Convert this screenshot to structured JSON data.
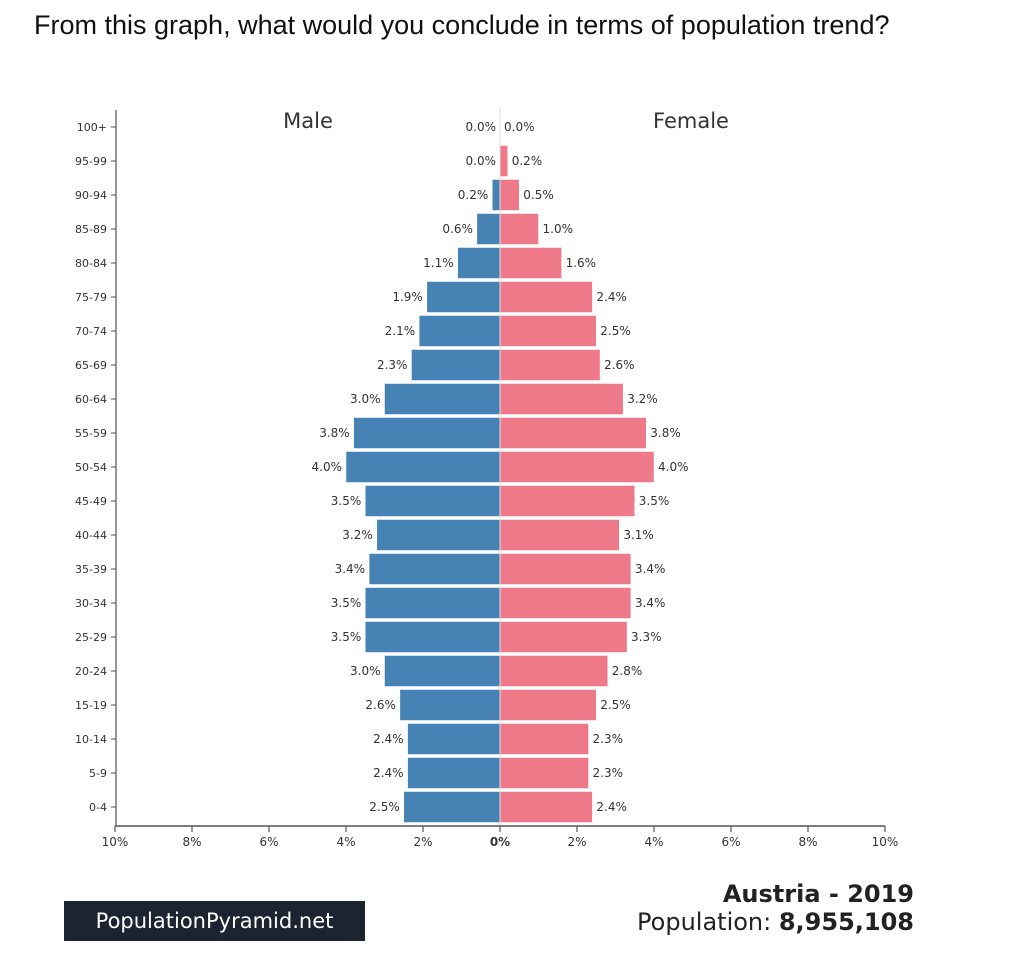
{
  "question": "From this graph, what would you conclude in terms of population trend?",
  "colors": {
    "male": "#4682b4",
    "female": "#ee7989",
    "axis": "#555555",
    "brand_bg": "#1c2331"
  },
  "chart_data": {
    "type": "bar",
    "orientation": "horizontal-diverging",
    "left_label": "Male",
    "right_label": "Female",
    "categories": [
      "100+",
      "95-99",
      "90-94",
      "85-89",
      "80-84",
      "75-79",
      "70-74",
      "65-69",
      "60-64",
      "55-59",
      "50-54",
      "45-49",
      "40-44",
      "35-39",
      "30-34",
      "25-29",
      "20-24",
      "15-19",
      "10-14",
      "5-9",
      "0-4"
    ],
    "series": [
      {
        "name": "Male",
        "values": [
          0.0,
          0.0,
          0.2,
          0.6,
          1.1,
          1.9,
          2.1,
          2.3,
          3.0,
          3.8,
          4.0,
          3.5,
          3.2,
          3.4,
          3.5,
          3.5,
          3.0,
          2.6,
          2.4,
          2.4,
          2.5
        ]
      },
      {
        "name": "Female",
        "values": [
          0.0,
          0.2,
          0.5,
          1.0,
          1.6,
          2.4,
          2.5,
          2.6,
          3.2,
          3.8,
          4.0,
          3.5,
          3.1,
          3.4,
          3.4,
          3.3,
          2.8,
          2.5,
          2.3,
          2.3,
          2.4
        ]
      }
    ],
    "male_labels": [
      "0.0%",
      "0.0%",
      "0.2%",
      "0.6%",
      "1.1%",
      "1.9%",
      "2.1%",
      "2.3%",
      "3.0%",
      "3.8%",
      "4.0%",
      "3.5%",
      "3.2%",
      "3.4%",
      "3.5%",
      "3.5%",
      "3.0%",
      "2.6%",
      "2.4%",
      "2.4%",
      "2.5%"
    ],
    "female_labels": [
      "0.0%",
      "0.2%",
      "0.5%",
      "1.0%",
      "1.6%",
      "2.4%",
      "2.5%",
      "2.6%",
      "3.2%",
      "3.8%",
      "4.0%",
      "3.5%",
      "3.1%",
      "3.4%",
      "3.4%",
      "3.3%",
      "2.8%",
      "2.5%",
      "2.3%",
      "2.3%",
      "2.4%"
    ],
    "x_ticks": [
      -10,
      -8,
      -6,
      -4,
      -2,
      0,
      2,
      4,
      6,
      8,
      10
    ],
    "x_tick_labels": [
      "10%",
      "8%",
      "6%",
      "4%",
      "2%",
      "0%",
      "2%",
      "4%",
      "6%",
      "8%",
      "10%"
    ],
    "xlim": [
      -10,
      10
    ],
    "grid": false
  },
  "footer": {
    "brand": "PopulationPyramid.net",
    "country_year": "Austria - 2019",
    "population_label": "Population:",
    "population_value": "8,955,108"
  }
}
